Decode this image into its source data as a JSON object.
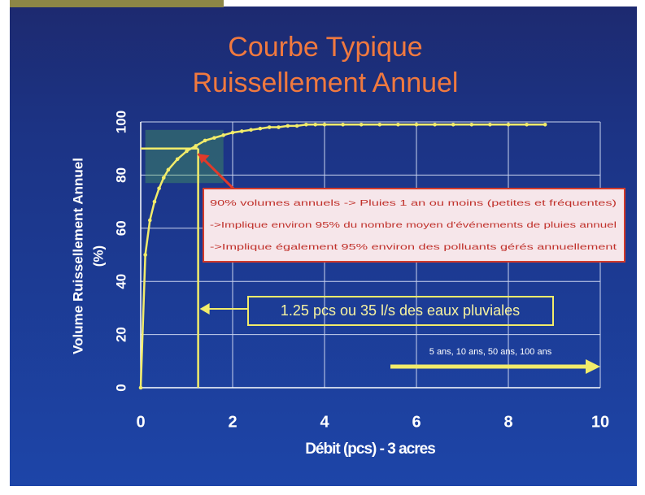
{
  "chart_data": {
    "type": "line",
    "title": [
      "Courbe Typique",
      "Ruissellement Annuel"
    ],
    "y_label": [
      "Volume Ruissellement  Annuel",
      "(%)"
    ],
    "x_label": "Débit (pcs) - 3 acres",
    "x": [
      0,
      0.1,
      0.2,
      0.3,
      0.4,
      0.5,
      0.6,
      0.8,
      1.0,
      1.2,
      1.4,
      1.6,
      1.8,
      2.0,
      2.2,
      2.4,
      2.6,
      2.8,
      3.0,
      3.2,
      3.4,
      3.6,
      3.8,
      4.0,
      4.4,
      4.8,
      5.2,
      5.6,
      6.0,
      6.4,
      6.8,
      7.2,
      7.6,
      8.0,
      8.4,
      8.8
    ],
    "series": [
      {
        "color": "#f2ec6a",
        "values": [
          0,
          50,
          63,
          70,
          75,
          79,
          82,
          86,
          89,
          91,
          93,
          94,
          95,
          96,
          96.5,
          97,
          97.5,
          98,
          98,
          98.5,
          98.5,
          99,
          99,
          99,
          99,
          99,
          99,
          99,
          99,
          99,
          99,
          99,
          99,
          99,
          99,
          99
        ]
      }
    ],
    "xlim": [
      0,
      10
    ],
    "ylim": [
      0,
      100
    ],
    "xticks": [
      0,
      2,
      4,
      6,
      8,
      10
    ],
    "yticks": [
      0,
      20,
      40,
      60,
      80,
      100
    ],
    "grid": true,
    "hline": 90,
    "vline": 1.25,
    "annotations": {
      "box_lines": [
        "90% volumes annuels -> Pluies 1 an ou moins (petites et fréquentes)",
        "->Implique environ 95% du nombre moyen d'événements de pluies annuel",
        "->Implique également 95% environ des polluants gérés annuellement"
      ],
      "flow_label": "1.25 pcs ou 35 l/s des eaux pluviales",
      "return_periods": "5 ans, 10 ans, 50 ans, 100 ans"
    }
  }
}
